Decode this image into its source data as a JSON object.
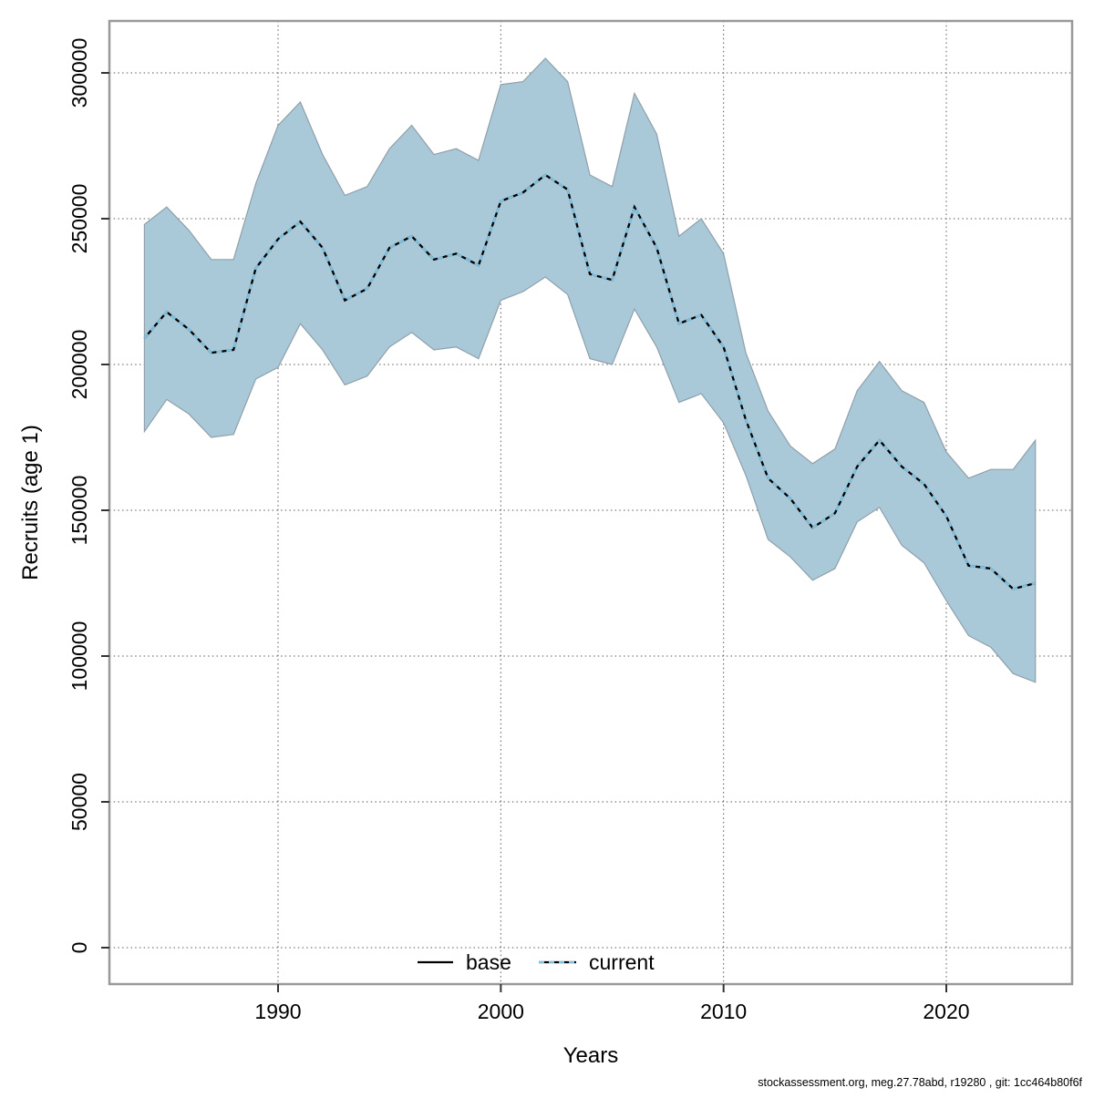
{
  "footer": {
    "text": "stockassessment.org, meg.27.78abd, r19280 , git: 1cc464b80f6f"
  },
  "colors": {
    "band_fill": "#a9c8d8",
    "band_border": "#8fa0aa",
    "base_line": "#000000",
    "current_line": "#7ec3e2",
    "grid": "#5a5a5a",
    "frame": "#999999",
    "tick": "#333333",
    "footer_text": "#1a1a1a"
  },
  "chart_data": {
    "type": "line",
    "title": "",
    "xlabel": "Years",
    "ylabel": "Recruits (age 1)",
    "grid": "dotted",
    "legend_position": "bottom-center-inside",
    "xlim": [
      1983.5,
      2025.5
    ],
    "ylim": [
      0,
      320000
    ],
    "x_ticks": [
      1990,
      2000,
      2010,
      2020
    ],
    "y_ticks": [
      0,
      50000,
      100000,
      150000,
      200000,
      250000,
      300000
    ],
    "x": [
      1984,
      1985,
      1986,
      1987,
      1988,
      1989,
      1990,
      1991,
      1992,
      1993,
      1994,
      1995,
      1996,
      1997,
      1998,
      1999,
      2000,
      2001,
      2002,
      2003,
      2004,
      2005,
      2006,
      2007,
      2008,
      2009,
      2010,
      2011,
      2012,
      2013,
      2014,
      2015,
      2016,
      2017,
      2018,
      2019,
      2020,
      2021,
      2022,
      2023,
      2024
    ],
    "series": [
      {
        "name": "base",
        "style": "solid",
        "color": "#000000",
        "values": [
          209000,
          218000,
          212000,
          204000,
          205000,
          233000,
          243000,
          249000,
          240000,
          222000,
          226000,
          240000,
          244000,
          236000,
          238000,
          234000,
          256000,
          259000,
          265000,
          260000,
          231000,
          229000,
          254000,
          240000,
          214000,
          217000,
          206000,
          181000,
          161000,
          154000,
          144000,
          149000,
          165000,
          174000,
          165000,
          159000,
          148000,
          131000,
          130000,
          123000,
          125000
        ]
      },
      {
        "name": "current",
        "style": "dashed",
        "color": "#7ec3e2",
        "values": [
          209000,
          218000,
          212000,
          204000,
          205000,
          233000,
          243000,
          249000,
          240000,
          222000,
          226000,
          240000,
          244000,
          236000,
          238000,
          234000,
          256000,
          259000,
          265000,
          260000,
          231000,
          229000,
          254000,
          240000,
          214000,
          217000,
          206000,
          181000,
          161000,
          154000,
          144000,
          149000,
          165000,
          174000,
          165000,
          159000,
          148000,
          131000,
          130000,
          123000,
          125000
        ]
      }
    ],
    "band": {
      "name": "confidence-interval",
      "lower": [
        177000,
        188000,
        183000,
        175000,
        176000,
        195000,
        199000,
        214000,
        205000,
        193000,
        196000,
        206000,
        211000,
        205000,
        206000,
        202000,
        222000,
        225000,
        230000,
        224000,
        202000,
        200000,
        219000,
        206000,
        187000,
        190000,
        180000,
        162000,
        140000,
        134000,
        126000,
        130000,
        146000,
        151000,
        138000,
        132000,
        119000,
        107000,
        103000,
        94000,
        91000
      ],
      "upper": [
        248000,
        254000,
        246000,
        236000,
        236000,
        262000,
        282000,
        290000,
        272000,
        258000,
        261000,
        274000,
        282000,
        272000,
        274000,
        270000,
        296000,
        297000,
        305000,
        297000,
        265000,
        261000,
        293000,
        279000,
        244000,
        250000,
        238000,
        204000,
        184000,
        172000,
        166000,
        171000,
        191000,
        201000,
        191000,
        187000,
        170000,
        161000,
        164000,
        164000,
        174000
      ]
    },
    "legend": [
      {
        "label": "base",
        "style": "solid",
        "color": "#000000"
      },
      {
        "label": "current",
        "style": "dashed",
        "color": "#7ec3e2"
      }
    ]
  }
}
